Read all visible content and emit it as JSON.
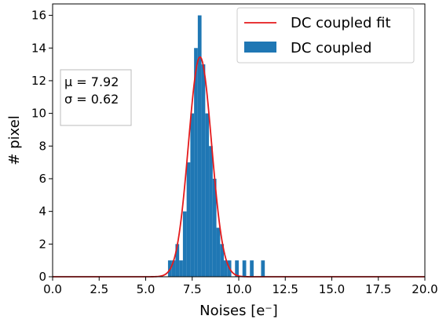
{
  "chart_data": {
    "type": "bar",
    "xlabel": "Noises [e⁻]",
    "ylabel": "# pixel",
    "xlim": [
      0,
      20
    ],
    "ylim": [
      0,
      16.7
    ],
    "xticks": [
      0.0,
      2.5,
      5.0,
      7.5,
      10.0,
      12.5,
      15.0,
      17.5,
      20.0
    ],
    "xtick_labels": [
      "0.0",
      "2.5",
      "5.0",
      "7.5",
      "10.0",
      "12.5",
      "15.0",
      "17.5",
      "20.0"
    ],
    "yticks": [
      0,
      2,
      4,
      6,
      8,
      10,
      12,
      14,
      16
    ],
    "ytick_labels": [
      "0",
      "2",
      "4",
      "6",
      "8",
      "10",
      "12",
      "14",
      "16"
    ],
    "grid": false,
    "legend_position": "top-right",
    "series": [
      {
        "name": "DC coupled",
        "type": "histogram",
        "color": "#1f77b4",
        "bin_width": 0.2,
        "bin_starts": [
          6.2,
          6.4,
          6.6,
          6.8,
          7.0,
          7.2,
          7.4,
          7.6,
          7.8,
          8.0,
          8.2,
          8.4,
          8.6,
          8.8,
          9.0,
          9.2,
          9.4,
          9.6,
          9.8,
          10.0,
          10.2,
          10.4,
          10.6,
          10.8,
          11.0,
          11.2
        ],
        "values": [
          1,
          1,
          2,
          1,
          4,
          7,
          10,
          14,
          16,
          13,
          10,
          8,
          6,
          3,
          2,
          1,
          1,
          0,
          1,
          0,
          1,
          0,
          1,
          0,
          0,
          1
        ]
      },
      {
        "name": "DC coupled fit",
        "type": "line",
        "color": "#e41a1c",
        "mu": 7.92,
        "sigma": 0.62,
        "peak": 13.45
      }
    ],
    "annotation": {
      "lines": [
        "μ = 7.92",
        "σ = 0.62"
      ]
    }
  }
}
